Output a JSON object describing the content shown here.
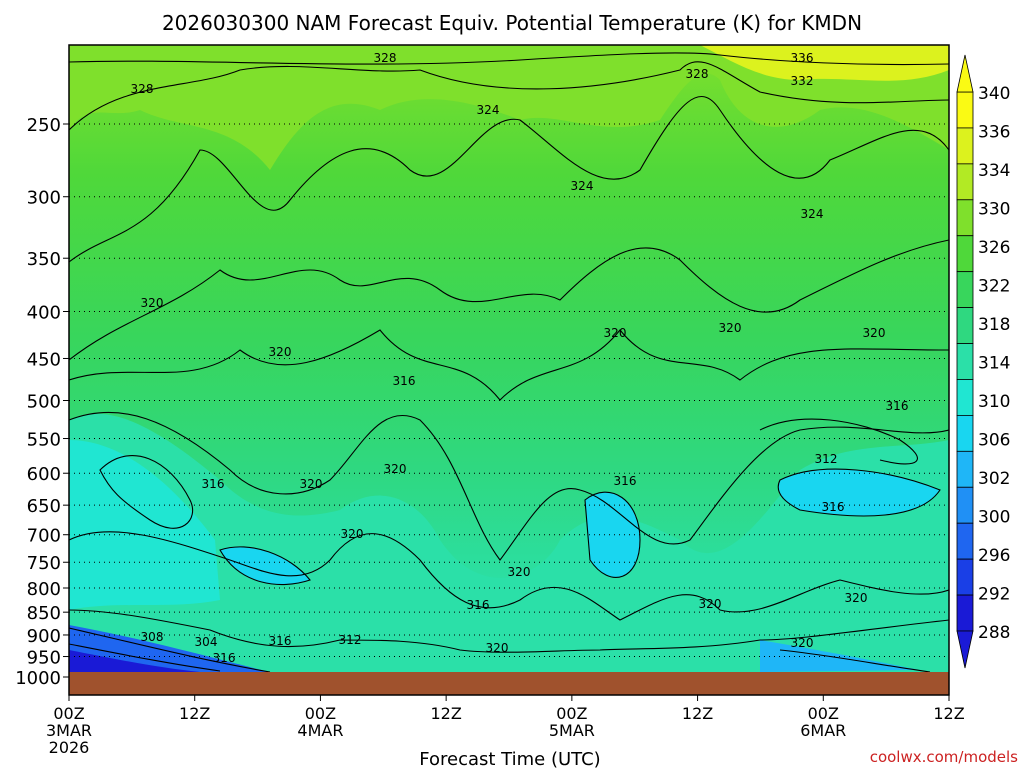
{
  "chart_data": {
    "type": "heatmap",
    "title": "2026030300 NAM Forecast Equiv. Potential Temperature (K) for KMDN",
    "xlabel": "Forecast Time (UTC)",
    "ylabel": "",
    "credit": "coolwx.com/models",
    "x_ticks": [
      {
        "hour": 0,
        "line1": "00Z",
        "line2": "3MAR",
        "line3": "2026"
      },
      {
        "hour": 12,
        "line1": "12Z",
        "line2": "",
        "line3": ""
      },
      {
        "hour": 24,
        "line1": "00Z",
        "line2": "4MAR",
        "line3": ""
      },
      {
        "hour": 36,
        "line1": "12Z",
        "line2": "",
        "line3": ""
      },
      {
        "hour": 48,
        "line1": "00Z",
        "line2": "5MAR",
        "line3": ""
      },
      {
        "hour": 60,
        "line1": "12Z",
        "line2": "",
        "line3": ""
      },
      {
        "hour": 72,
        "line1": "00Z",
        "line2": "6MAR",
        "line3": ""
      },
      {
        "hour": 84,
        "line1": "12Z",
        "line2": "",
        "line3": ""
      }
    ],
    "xlim": [
      0,
      84
    ],
    "y_ticks": [
      250,
      300,
      350,
      400,
      450,
      500,
      550,
      600,
      650,
      700,
      750,
      800,
      850,
      900,
      950,
      1000
    ],
    "y_scale": "log-pressure",
    "ylim": [
      1000,
      200
    ],
    "grid": "dotted horizontal at pressure levels",
    "colorbar": {
      "levels": [
        288,
        292,
        296,
        300,
        302,
        306,
        310,
        314,
        318,
        322,
        326,
        330,
        334,
        336,
        340
      ],
      "colors": [
        "#1a1ad6",
        "#1a3fe6",
        "#1f66f0",
        "#2090f5",
        "#1fb6f7",
        "#19d6f0",
        "#20e6d2",
        "#2be0a8",
        "#2fd880",
        "#38d65c",
        "#4fd83a",
        "#7fe02c",
        "#b2ea24",
        "#dcf21e",
        "#fafa14"
      ],
      "ticks": [
        "340",
        "336",
        "334",
        "330",
        "326",
        "322",
        "318",
        "314",
        "310",
        "306",
        "302",
        "300",
        "296",
        "292",
        "288"
      ]
    },
    "contour_labels": [
      "328",
      "328",
      "336",
      "332",
      "328",
      "324",
      "324",
      "324",
      "320",
      "320",
      "320",
      "320",
      "316",
      "316",
      "316",
      "320",
      "320",
      "312",
      "316",
      "316",
      "320",
      "320",
      "320",
      "316",
      "320",
      "312",
      "308",
      "304",
      "316",
      "316",
      "320",
      "320",
      "320"
    ]
  }
}
